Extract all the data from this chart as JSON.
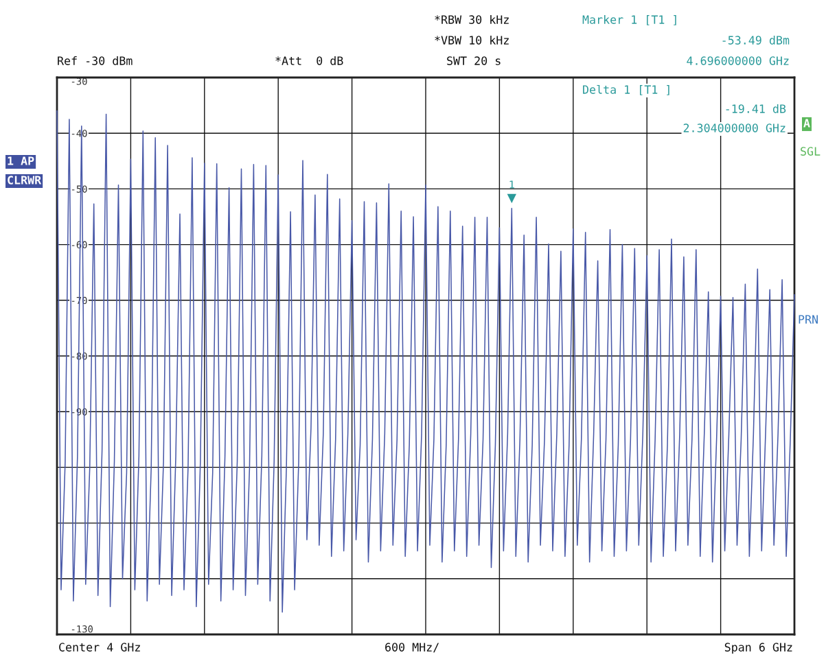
{
  "chart_data": {
    "type": "line",
    "categories": [
      null,
      null,
      null,
      null,
      null,
      null,
      null,
      null,
      null,
      null,
      null,
      null,
      null,
      null,
      null,
      null,
      null,
      null,
      null,
      null,
      null,
      null,
      null,
      null,
      null,
      null,
      null,
      null,
      null,
      null,
      null,
      null,
      null,
      null,
      null,
      null,
      null,
      null,
      null,
      null,
      null,
      null,
      null,
      null,
      null,
      null,
      null,
      null,
      null,
      null,
      null,
      null,
      null,
      null,
      null,
      null,
      null,
      null,
      null,
      null,
      null,
      null,
      null,
      null,
      null,
      null,
      null,
      null,
      null,
      null,
      null,
      null,
      null,
      null,
      null,
      null,
      null,
      null,
      null,
      null,
      null,
      null,
      null,
      null,
      null,
      null,
      null,
      null,
      null,
      null,
      null,
      null,
      null,
      null,
      null,
      null,
      null,
      null,
      null,
      null,
      null,
      null,
      null,
      null,
      null,
      null,
      null,
      null,
      null,
      null,
      null,
      null,
      null,
      null,
      null,
      null,
      null,
      null,
      null,
      null,
      null,
      null,
      null,
      null,
      null,
      null,
      null,
      null,
      null,
      null,
      null,
      null,
      null,
      null,
      null,
      null,
      null,
      null,
      null,
      null,
      null,
      null,
      null,
      null,
      null,
      null,
      null,
      null,
      null,
      null,
      null,
      null,
      null,
      null,
      null,
      null,
      null,
      null,
      null,
      null,
      null,
      null,
      null,
      null,
      null,
      null,
      null,
      null,
      null,
      null,
      null,
      null,
      null,
      null,
      null,
      null,
      null,
      null,
      null,
      null,
      null
    ],
    "ylim": [
      -130,
      -30
    ],
    "yticks": [
      -30,
      -40,
      -50,
      -60,
      -70,
      -80,
      -90,
      {
        "value": -100,
        "label": null
      },
      {
        "value": -110,
        "label": null
      },
      {
        "value": -120,
        "label": null
      },
      -130
    ],
    "grid": true,
    "series": [
      {
        "color": "#4858a8",
        "values": [
          -36,
          -122,
          -99,
          -37.5,
          -124,
          -98,
          -38.7,
          -121,
          -100,
          -52.7,
          -123,
          -97,
          -36.6,
          -125,
          -99,
          -49.3,
          -120,
          -101,
          -44.7,
          -122,
          -98,
          -39.6,
          -124,
          -100,
          -40.8,
          -121,
          -99,
          -42.2,
          -123,
          -98,
          -54.5,
          -122,
          -100,
          -44.4,
          -125,
          -99,
          -45.4,
          -121,
          -101,
          -45.5,
          -124,
          -98,
          -49.8,
          -122,
          -99,
          -46.4,
          -123,
          -100,
          -45.6,
          -121,
          -98,
          -45.8,
          -124,
          -99,
          -47.5,
          -126,
          -100,
          -54.1,
          -122,
          -99,
          -44.9,
          -113,
          -93,
          -51.1,
          -114,
          -94,
          -47.4,
          -116,
          -95,
          -51.8,
          -115,
          -94,
          -55.7,
          -113,
          -96,
          -52.3,
          -117,
          -95,
          -52.5,
          -115,
          -94,
          -49.1,
          -114,
          -95,
          -54.0,
          -116,
          -96,
          -55.0,
          -115,
          -94,
          -49.3,
          -114,
          -95,
          -53.2,
          -117,
          -96,
          -54.0,
          -115,
          -95,
          -56.7,
          -116,
          -94,
          -55.1,
          -114,
          -95,
          -55.1,
          -118,
          -96,
          -57.0,
          -115,
          -94,
          -53.5,
          -116,
          -95,
          -58.3,
          -117,
          -96,
          -55.1,
          -114,
          -95,
          -59.9,
          -115,
          -94,
          -61.2,
          -116,
          -96,
          -57.2,
          -114,
          -95,
          -57.8,
          -117,
          -94,
          -62.9,
          -115,
          -95,
          -57.3,
          -116,
          -96,
          -60.0,
          -115,
          -95,
          -60.7,
          -114,
          -94,
          -62.0,
          -117,
          -95,
          -60.9,
          -116,
          -96,
          -59.0,
          -115,
          -94,
          -62.2,
          -114,
          -95,
          -60.9,
          -116,
          -94,
          -68.5,
          -117,
          -95,
          -69.3,
          -115,
          -94,
          -69.5,
          -114,
          -95,
          -67.1,
          -116,
          -94,
          -64.4,
          -115,
          -93,
          -68.1,
          -114,
          -94,
          -66.3,
          -116,
          -95,
          -69
        ]
      }
    ],
    "annotations": [
      "Ref -30 dBm",
      "*Att  0 dB",
      "*RBW 30 kHz",
      "*VBW 10 kHz",
      "SWT 20 s",
      "Marker 1 [T1 ]",
      "-53.49 dBm",
      "4.696000000 GHz",
      "Delta 1 [T1 ]",
      "-19.41 dB",
      "2.304000000 GHz",
      "1 AP",
      "CLRWR",
      "A",
      "SGL",
      "PRN",
      "Center 4 GHz",
      "600 MHz/",
      "Span 6 GHz",
      {
        "text": "1",
        "y": -53.49
      }
    ]
  }
}
